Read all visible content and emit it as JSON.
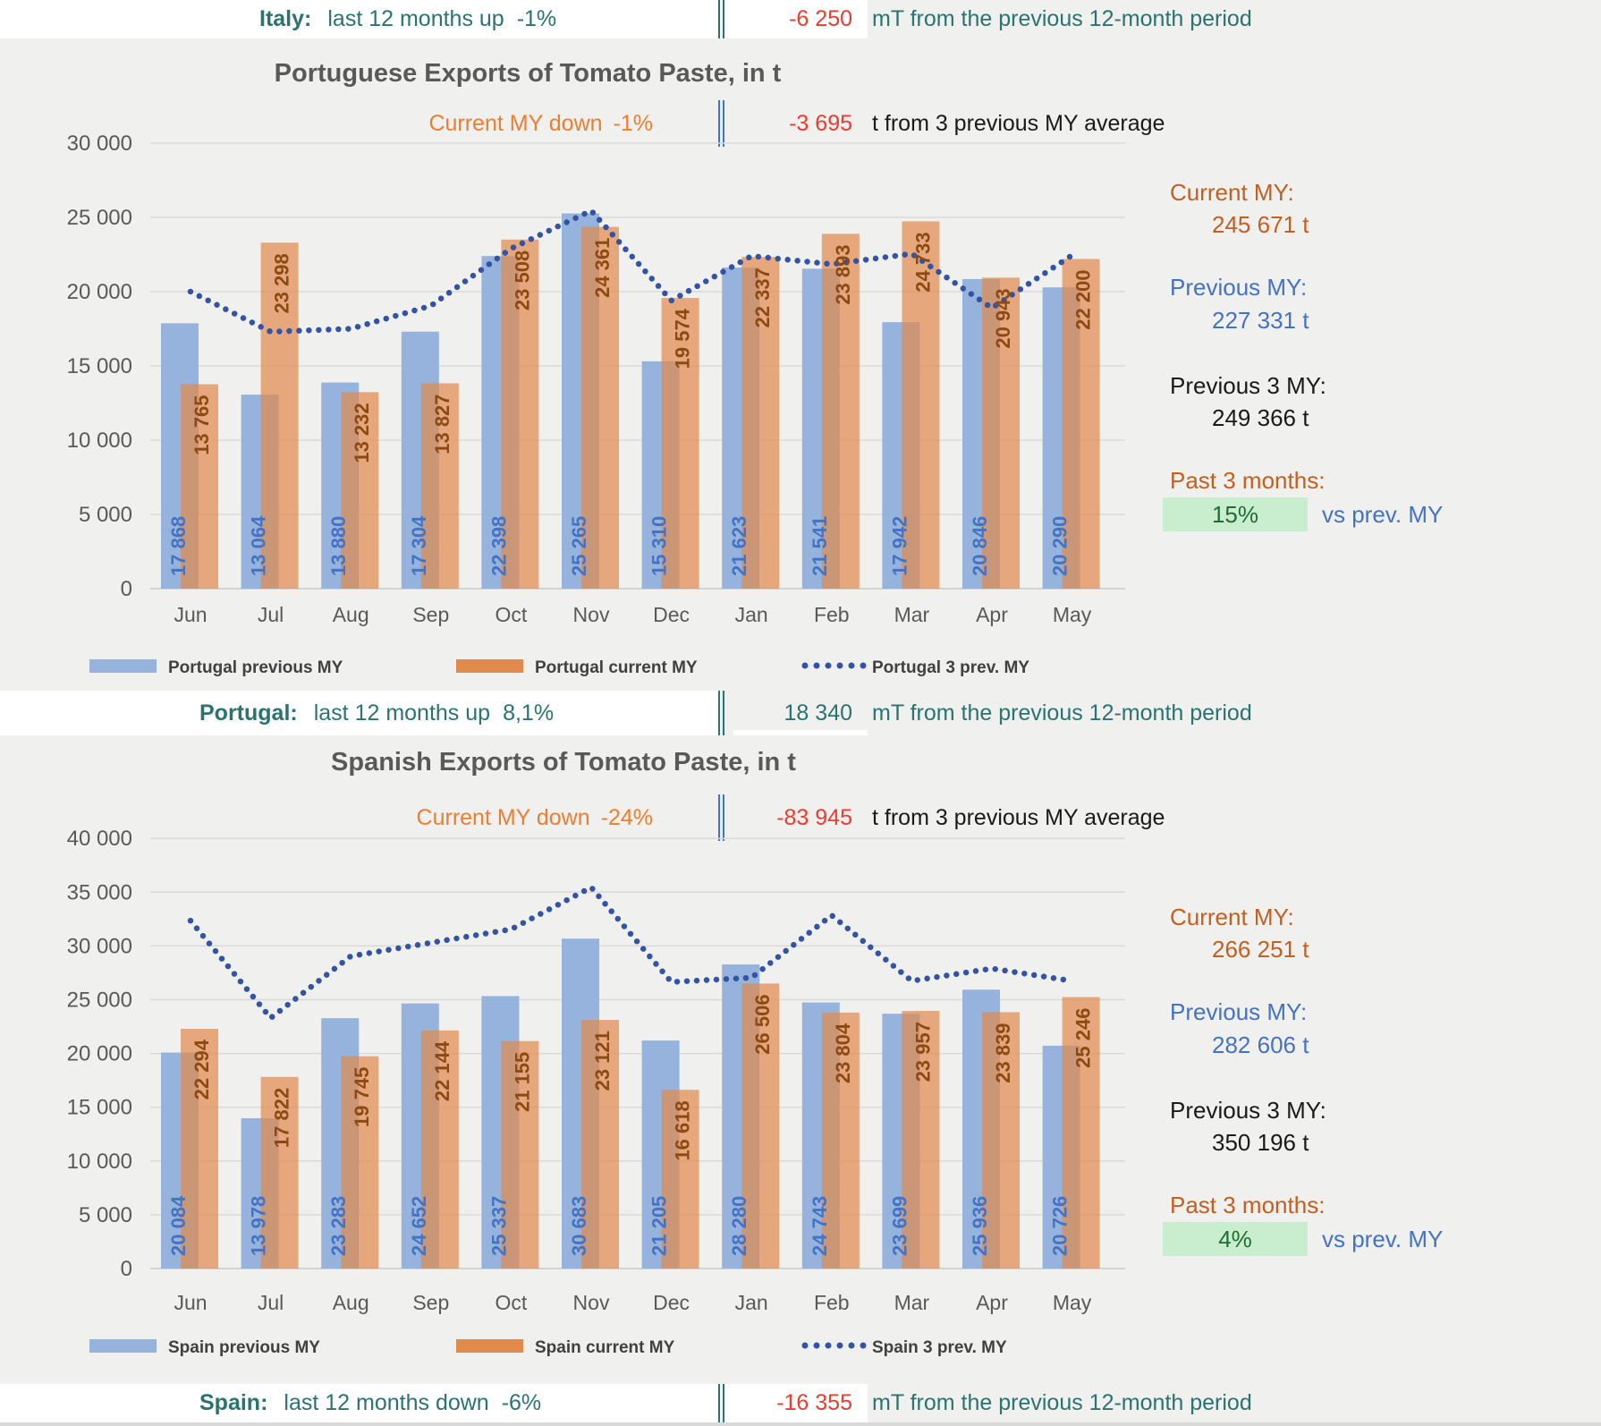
{
  "colors": {
    "bg": "#F0F0EF",
    "white": "#FFFFFF",
    "teal": "#2B7370",
    "red": "#EE3B30",
    "subtitle_orange": "#ED7D31",
    "title_gray": "#595959",
    "axis_gray": "#595959",
    "grid": "#D9D9D9",
    "grid_base": "#C9C9C9",
    "bar_blue": "#95B3DD",
    "bar_orange": "#E08A4E",
    "bar_orange_opacity": 0.72,
    "label_blue": "#4472C4",
    "label_brown": "#8C4A12",
    "dot_navy": "#3353A4",
    "legend_text": "#404040",
    "stat_orange": "#C55F1F",
    "stat_blue": "#4472C4",
    "stat_black": "#1A1A1A",
    "green_bg": "#C8EECF",
    "green_text": "#1F6D2F",
    "divider_blue": "#4472C4",
    "bottom_strip": "#D9D9D9"
  },
  "summary_rows": [
    {
      "id": "italy",
      "country": "Italy:",
      "text": "last 12 months up",
      "pct": "-1%",
      "delta": "-6 250",
      "delta_negative": true,
      "suffix": "mT from the previous 12-month period"
    },
    {
      "id": "portugal",
      "country": "Portugal:",
      "text": "last 12 months up",
      "pct": "8,1%",
      "delta": "18 340",
      "delta_negative": false,
      "suffix": "mT from the previous 12-month period"
    },
    {
      "id": "spain",
      "country": "Spain:",
      "text": "last 12 months down",
      "pct": "-6%",
      "delta": "-16 355",
      "delta_negative": true,
      "suffix": "mT from the previous 12-month period"
    }
  ],
  "chart_data": [
    {
      "type": "bar",
      "title": "Portuguese Exports of Tomato Paste, in t",
      "subtitle": {
        "label": "Current MY down",
        "pct": "-1%",
        "delta": "-3 695",
        "suffix": "t from 3 previous MY average"
      },
      "categories": [
        "Jun",
        "Jul",
        "Aug",
        "Sep",
        "Oct",
        "Nov",
        "Dec",
        "Jan",
        "Feb",
        "Mar",
        "Apr",
        "May"
      ],
      "xlabel": "",
      "ylabel": "",
      "ylim": [
        0,
        30000
      ],
      "ytick_step": 5000,
      "grid": true,
      "legend_position": "bottom",
      "series": [
        {
          "name": "Portugal previous MY",
          "render": "bar",
          "color_key": "bar_blue",
          "values": [
            17868,
            13064,
            13880,
            17304,
            22398,
            25265,
            15310,
            21623,
            21541,
            17942,
            20846,
            20290
          ]
        },
        {
          "name": "Portugal current MY",
          "render": "bar",
          "color_key": "bar_orange",
          "values": [
            13765,
            23298,
            13232,
            13827,
            23508,
            24361,
            19574,
            22337,
            23893,
            24733,
            20943,
            22200
          ]
        },
        {
          "name": "Portugal 3 prev. MY",
          "render": "dotted-line",
          "color_key": "dot_navy",
          "estimated": true,
          "values": [
            20000,
            17300,
            17500,
            19050,
            22900,
            25450,
            19400,
            22400,
            21850,
            22550,
            18900,
            22450
          ]
        }
      ],
      "stats": [
        {
          "label": "Current MY:",
          "value": "245 671 t",
          "color": "orange"
        },
        {
          "label": "Previous MY:",
          "value": "227 331 t",
          "color": "blue"
        },
        {
          "label": "Previous 3 MY:",
          "value": "249 366 t",
          "color": "black"
        },
        {
          "label": "Past 3 months:",
          "pct": "15%",
          "suffix": "vs prev. MY",
          "color": "orange",
          "highlight": true
        }
      ]
    },
    {
      "type": "bar",
      "title": "Spanish Exports of Tomato Paste, in t",
      "subtitle": {
        "label": "Current MY down",
        "pct": "-24%",
        "delta": "-83 945",
        "suffix": "t from 3 previous MY average"
      },
      "categories": [
        "Jun",
        "Jul",
        "Aug",
        "Sep",
        "Oct",
        "Nov",
        "Dec",
        "Jan",
        "Feb",
        "Mar",
        "Apr",
        "May"
      ],
      "xlabel": "",
      "ylabel": "",
      "ylim": [
        0,
        40000
      ],
      "ytick_step": 5000,
      "grid": true,
      "legend_position": "bottom",
      "series": [
        {
          "name": "Spain previous MY",
          "render": "bar",
          "color_key": "bar_blue",
          "values": [
            20084,
            13978,
            23283,
            24652,
            25337,
            30683,
            21205,
            28280,
            24743,
            23699,
            25936,
            20726
          ]
        },
        {
          "name": "Spain current MY",
          "render": "bar",
          "color_key": "bar_orange",
          "values": [
            22294,
            17822,
            19745,
            22144,
            21155,
            23121,
            16618,
            26506,
            23804,
            23957,
            23839,
            25246
          ]
        },
        {
          "name": "Spain 3 prev. MY",
          "render": "dotted-line",
          "color_key": "dot_navy",
          "estimated": true,
          "values": [
            32350,
            23300,
            29050,
            30300,
            31550,
            35450,
            26650,
            27050,
            32850,
            26750,
            27900,
            26750
          ]
        }
      ],
      "stats": [
        {
          "label": "Current MY:",
          "value": "266 251 t",
          "color": "orange"
        },
        {
          "label": "Previous MY:",
          "value": "282 606 t",
          "color": "blue"
        },
        {
          "label": "Previous 3 MY:",
          "value": "350 196 t",
          "color": "black"
        },
        {
          "label": "Past 3 months:",
          "pct": "4%",
          "suffix": "vs prev. MY",
          "color": "orange",
          "highlight": true
        }
      ]
    }
  ]
}
